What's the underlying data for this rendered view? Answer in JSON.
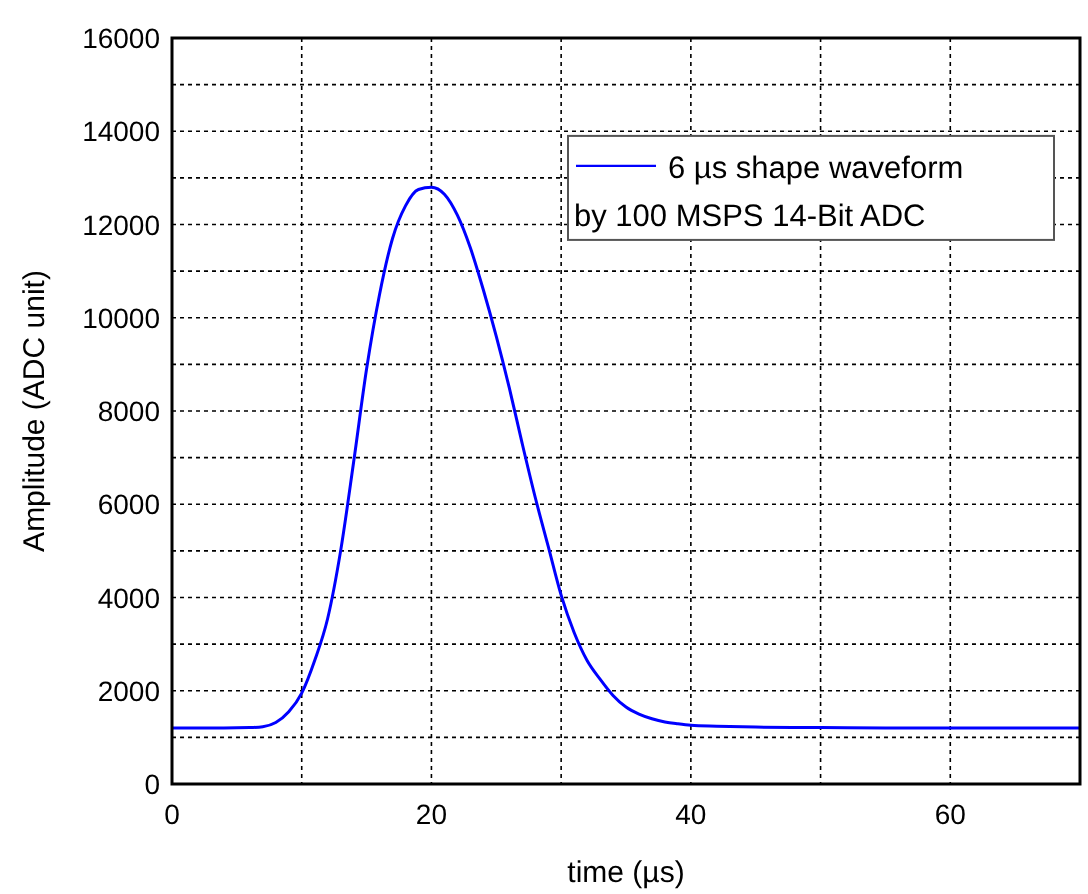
{
  "chart_data": {
    "type": "line",
    "xlabel": "time (µs)",
    "ylabel": "Amplitude (ADC unit)",
    "xlim": [
      0,
      70
    ],
    "xticks": [
      0,
      {
        "value": 10,
        "label": null
      },
      20,
      {
        "value": 30,
        "label": null
      },
      40,
      {
        "value": 50,
        "label": null
      },
      60,
      {
        "value": 70,
        "label": null
      }
    ],
    "ylim": [
      0,
      16000
    ],
    "yticks": [
      0,
      {
        "value": 1000,
        "label": null
      },
      2000,
      {
        "value": 3000,
        "label": null
      },
      4000,
      {
        "value": 5000,
        "label": null
      },
      6000,
      {
        "value": 7000,
        "label": null
      },
      8000,
      {
        "value": 9000,
        "label": null
      },
      10000,
      {
        "value": 11000,
        "label": null
      },
      12000,
      {
        "value": 13000,
        "label": null
      },
      14000,
      {
        "value": 15000,
        "label": null
      },
      16000
    ],
    "grid": true,
    "legend": "top right",
    "line_style": "solid",
    "marker": "none",
    "x": [
      0,
      2,
      4,
      6,
      7,
      8,
      9,
      10,
      11,
      12,
      13,
      14,
      15,
      16,
      17,
      18,
      19,
      20,
      21,
      22,
      23,
      24,
      25,
      26,
      27,
      28,
      29,
      30,
      31,
      32,
      33,
      34,
      35,
      36,
      37,
      38,
      39,
      40,
      42,
      45,
      50,
      55,
      60,
      65,
      70
    ],
    "series": [
      {
        "name": "6 µs shape waveform\nby 100 MSPS 14-Bit ADC",
        "color": "#0000ff",
        "values": [
          1200,
          1200,
          1200,
          1210,
          1230,
          1320,
          1550,
          1950,
          2650,
          3550,
          5000,
          6900,
          8900,
          10500,
          11700,
          12400,
          12750,
          12800,
          12650,
          12200,
          11500,
          10600,
          9600,
          8500,
          7300,
          6150,
          5100,
          4050,
          3250,
          2650,
          2250,
          1900,
          1650,
          1500,
          1400,
          1330,
          1290,
          1260,
          1240,
          1220,
          1210,
          1200,
          1200,
          1200,
          1200
        ]
      }
    ]
  }
}
